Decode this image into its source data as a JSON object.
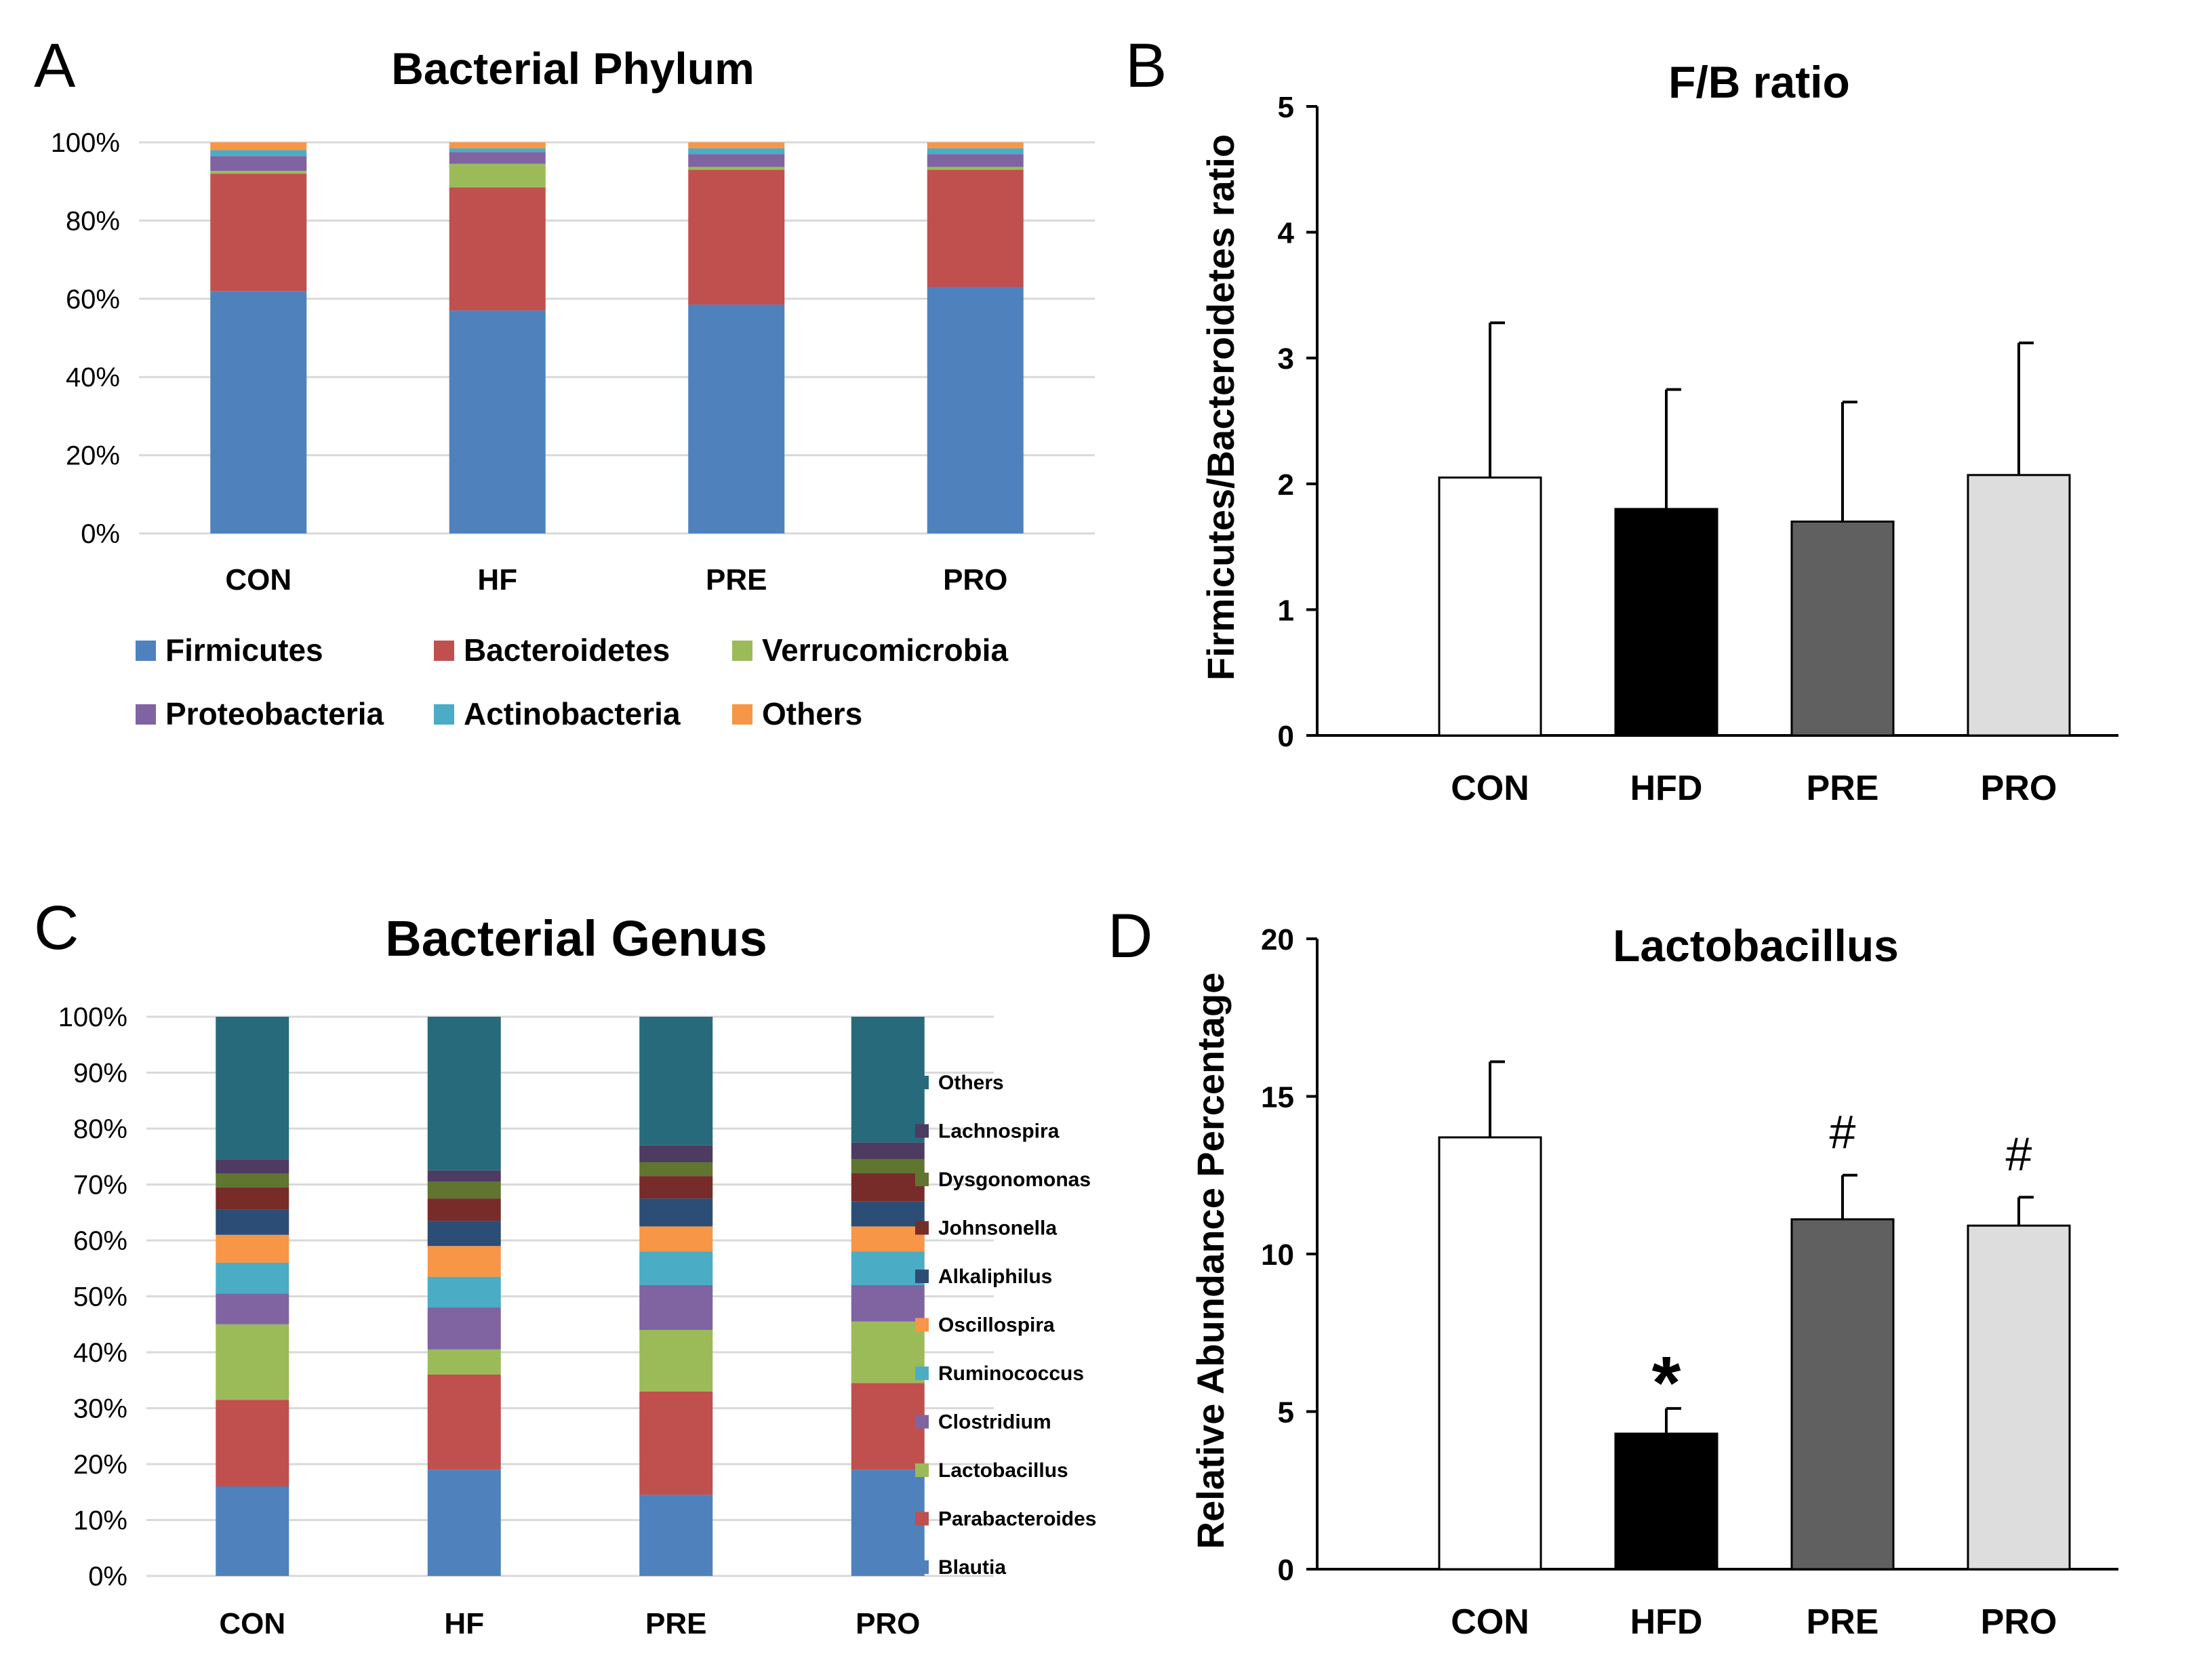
{
  "chart_data": [
    {
      "panel": "A",
      "type": "bar",
      "stacked": true,
      "title": "Bacterial Phylum",
      "categories": [
        "CON",
        "HF",
        "PRE",
        "PRO"
      ],
      "y_ticks": [
        "0%",
        "20%",
        "40%",
        "60%",
        "80%",
        "100%"
      ],
      "ylim": [
        0,
        100
      ],
      "grid": true,
      "legend_position": "bottom",
      "series": [
        {
          "name": "Firmicutes",
          "color": "#4F81BD",
          "values": [
            62,
            57,
            58.5,
            63
          ]
        },
        {
          "name": "Bacteroidetes",
          "color": "#C0504D",
          "values": [
            30,
            31.5,
            34.5,
            30
          ]
        },
        {
          "name": "Verrucomicrobia",
          "color": "#9BBB59",
          "values": [
            0.7,
            6,
            0.7,
            0.7
          ]
        },
        {
          "name": "Proteobacteria",
          "color": "#8064A2",
          "values": [
            3.8,
            3,
            3.3,
            3.3
          ]
        },
        {
          "name": "Actinobacteria",
          "color": "#4BACC6",
          "values": [
            1.5,
            1,
            1.5,
            1.5
          ]
        },
        {
          "name": "Others",
          "color": "#F79646",
          "values": [
            2,
            1.5,
            1.5,
            1.5
          ]
        }
      ]
    },
    {
      "panel": "B",
      "type": "bar",
      "title": "F/B ratio",
      "ylabel": "Firmicutes/Bacteroidetes ratio",
      "categories": [
        "CON",
        "HFD",
        "PRE",
        "PRO"
      ],
      "values": [
        2.05,
        1.8,
        1.7,
        2.07
      ],
      "error": [
        1.23,
        0.95,
        0.95,
        1.05
      ],
      "colors": [
        "#FFFFFF",
        "#000000",
        "#606060",
        "#DDDDDD"
      ],
      "y_ticks": [
        "0",
        "1",
        "2",
        "3",
        "4",
        "5"
      ],
      "ylim": [
        0,
        5
      ]
    },
    {
      "panel": "C",
      "type": "bar",
      "stacked": true,
      "title": "Bacterial Genus",
      "categories": [
        "CON",
        "HF",
        "PRE",
        "PRO"
      ],
      "y_ticks": [
        "0%",
        "10%",
        "20%",
        "30%",
        "40%",
        "50%",
        "60%",
        "70%",
        "80%",
        "90%",
        "100%"
      ],
      "ylim": [
        0,
        100
      ],
      "grid": true,
      "legend_position": "right",
      "series": [
        {
          "name": "Blautia",
          "color": "#4F81BD",
          "values": [
            16,
            19,
            14.5,
            19
          ]
        },
        {
          "name": "Parabacteroides",
          "color": "#C0504D",
          "values": [
            15.5,
            17,
            18.5,
            15.5
          ]
        },
        {
          "name": "Lactobacillus",
          "color": "#9BBB59",
          "values": [
            13.5,
            4.5,
            11,
            11
          ]
        },
        {
          "name": "Clostridium",
          "color": "#8064A2",
          "values": [
            5.5,
            7.5,
            8,
            6.5
          ]
        },
        {
          "name": "Ruminococcus",
          "color": "#4BACC6",
          "values": [
            5.5,
            5.5,
            6,
            6
          ]
        },
        {
          "name": "Oscillospira",
          "color": "#F79646",
          "values": [
            5,
            5.5,
            4.5,
            4.5
          ]
        },
        {
          "name": "Alkaliphilus",
          "color": "#2C4D75",
          "values": [
            4.5,
            4.5,
            5,
            4.5
          ]
        },
        {
          "name": "Johnsonella",
          "color": "#772C2A",
          "values": [
            4,
            4,
            4,
            5
          ]
        },
        {
          "name": "Dysgonomonas",
          "color": "#5F7530",
          "values": [
            2.5,
            3,
            2.5,
            2.5
          ]
        },
        {
          "name": "Lachnospira",
          "color": "#4D3B62",
          "values": [
            2.5,
            2,
            3,
            3
          ]
        },
        {
          "name": "Others",
          "color": "#276A7C",
          "values": [
            25.5,
            27.5,
            23,
            22.5
          ]
        }
      ]
    },
    {
      "panel": "D",
      "type": "bar",
      "title": "Lactobacillus",
      "ylabel": "Relative Abundance Percentage",
      "categories": [
        "CON",
        "HFD",
        "PRE",
        "PRO"
      ],
      "values": [
        13.7,
        4.3,
        11.1,
        10.9
      ],
      "error": [
        2.4,
        0.8,
        1.4,
        0.9
      ],
      "colors": [
        "#FFFFFF",
        "#000000",
        "#606060",
        "#DDDDDD"
      ],
      "annotations": [
        "",
        "*",
        "#",
        "#"
      ],
      "y_ticks": [
        "0",
        "5",
        "10",
        "15",
        "20"
      ],
      "ylim": [
        0,
        20
      ]
    }
  ]
}
